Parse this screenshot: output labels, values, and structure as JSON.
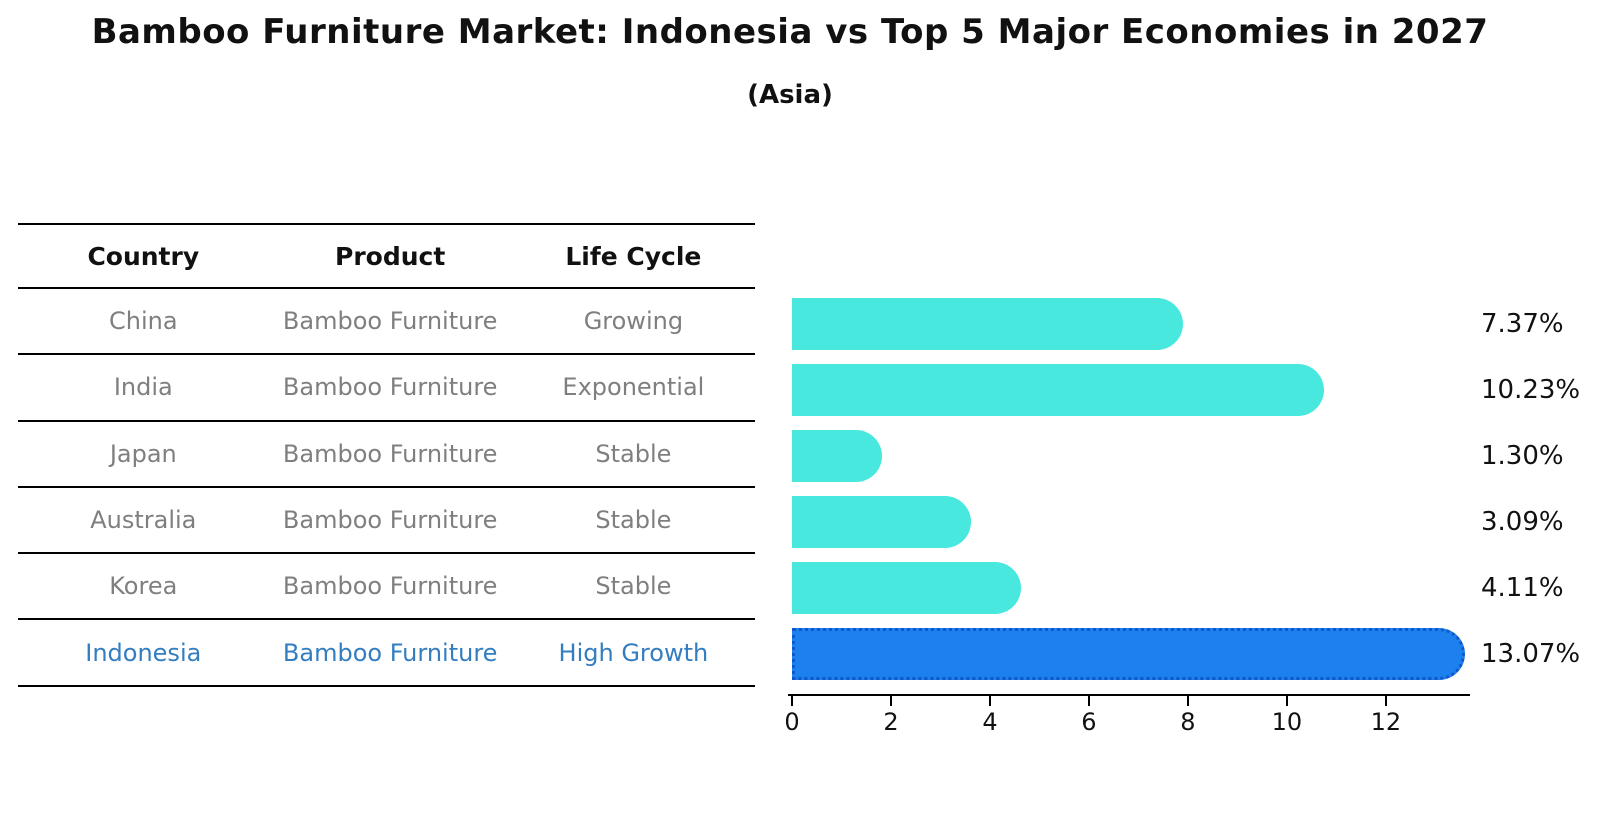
{
  "title": "Bamboo Furniture Market: Indonesia vs Top 5 Major Economies in 2027",
  "subtitle": "(Asia)",
  "table": {
    "headers": {
      "country": "Country",
      "product": "Product",
      "life_cycle": "Life Cycle"
    },
    "rows": [
      {
        "country": "China",
        "product": "Bamboo Furniture",
        "life_cycle": "Growing",
        "highlight": false
      },
      {
        "country": "India",
        "product": "Bamboo Furniture",
        "life_cycle": "Exponential",
        "highlight": false
      },
      {
        "country": "Japan",
        "product": "Bamboo Furniture",
        "life_cycle": "Stable",
        "highlight": false
      },
      {
        "country": "Australia",
        "product": "Bamboo Furniture",
        "life_cycle": "Stable",
        "highlight": false
      },
      {
        "country": "Korea",
        "product": "Bamboo Furniture",
        "life_cycle": "Stable",
        "highlight": false
      },
      {
        "country": "Indonesia",
        "product": "Bamboo Furniture",
        "life_cycle": "High Growth",
        "highlight": true
      }
    ]
  },
  "chart_data": {
    "type": "bar",
    "orientation": "horizontal",
    "categories": [
      "China",
      "India",
      "Japan",
      "Australia",
      "Korea",
      "Indonesia"
    ],
    "values": [
      7.37,
      10.23,
      1.3,
      3.09,
      4.11,
      13.07
    ],
    "value_labels": [
      "7.37%",
      "10.23%",
      "1.30%",
      "3.09%",
      "4.11%",
      "13.07%"
    ],
    "x_ticks": [
      0,
      2,
      4,
      6,
      8,
      10,
      12
    ],
    "xlim": [
      0,
      13.7
    ],
    "grid": false,
    "legend": "none",
    "highlight_index": 5,
    "bar_color": "#48e8de",
    "highlight_bar_color": "#1c80ee",
    "highlight_edge_color": "#1058c8",
    "highlight_text_color": "#337ec1"
  }
}
